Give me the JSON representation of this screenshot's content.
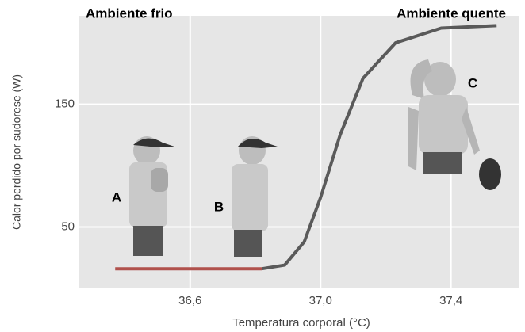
{
  "chart_data": {
    "type": "line",
    "xlabel": "Temperatura corporal (°C)",
    "ylabel": "Calor perdido por sudorese (W)",
    "annotations": [
      "Ambiente frio",
      "Ambiente quente",
      "A",
      "B",
      "C"
    ],
    "series": [
      {
        "color": "#b0514c",
        "x": [
          36.37,
          36.82
        ],
        "values": [
          16,
          16
        ]
      },
      {
        "color": "#5a5a5a",
        "x": [
          36.82,
          36.89,
          36.95,
          37.0,
          37.06,
          37.13,
          37.23,
          37.37,
          37.54
        ],
        "values": [
          16,
          19,
          38,
          74,
          125,
          171,
          200,
          212,
          214
        ]
      }
    ],
    "xlim": [
      36.26,
      37.61
    ],
    "ylim": [
      0,
      222
    ],
    "xticks": [
      {
        "value": 36.6,
        "label": "36,6"
      },
      {
        "value": 37.0,
        "label": "37,0"
      },
      {
        "value": 37.4,
        "label": "37,4"
      }
    ],
    "yticks": [
      50,
      150
    ],
    "grid": true
  }
}
